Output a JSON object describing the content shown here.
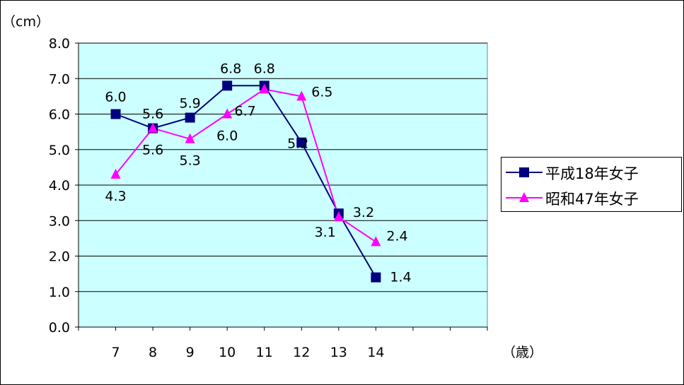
{
  "chart_data": {
    "type": "line",
    "y_unit_label": "（cm）",
    "x_unit_label": "（歳）",
    "categories": [
      "7",
      "8",
      "9",
      "10",
      "11",
      "12",
      "13",
      "14"
    ],
    "ylim": [
      0,
      8
    ],
    "yticks": [
      "0.0",
      "1.0",
      "2.0",
      "3.0",
      "4.0",
      "5.0",
      "6.0",
      "7.0",
      "8.0"
    ],
    "grid": true,
    "legend_position": "right",
    "plot_background": "#ccffff",
    "series": [
      {
        "name": "平成18年女子",
        "color": "#000080",
        "marker": "square",
        "values": [
          6.0,
          5.6,
          5.9,
          6.8,
          6.8,
          5.2,
          3.2,
          1.4
        ],
        "labels": [
          "6.0",
          "5.6",
          "5.9",
          "6.8",
          "6.8",
          "5.2",
          "3.2",
          "1.4"
        ]
      },
      {
        "name": "昭和47年女子",
        "color": "#ff00ff",
        "marker": "triangle",
        "values": [
          4.3,
          5.6,
          5.3,
          6.0,
          6.7,
          6.5,
          3.1,
          2.4
        ],
        "labels": [
          "4.3",
          "5.6",
          "5.3",
          "6.0",
          "6.7",
          "6.5",
          "3.1",
          "2.4"
        ]
      }
    ]
  }
}
